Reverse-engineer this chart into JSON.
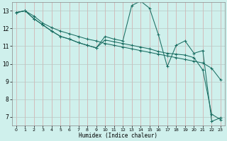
{
  "xlabel": "Humidex (Indice chaleur)",
  "bg_color": "#cff0ec",
  "grid_color_v": "#d4a8a8",
  "grid_color_h": "#b8c8c4",
  "line_color": "#1a6e62",
  "xlim": [
    -0.5,
    23.5
  ],
  "ylim": [
    6.5,
    13.5
  ],
  "yticks": [
    7,
    8,
    9,
    10,
    11,
    12,
    13
  ],
  "xticks": [
    0,
    1,
    2,
    3,
    4,
    5,
    6,
    7,
    8,
    9,
    10,
    11,
    12,
    13,
    14,
    15,
    16,
    17,
    18,
    19,
    20,
    21,
    22,
    23
  ],
  "series": [
    {
      "x": [
        0,
        1,
        2,
        3,
        4,
        5,
        6,
        7,
        8,
        9,
        10,
        11,
        12,
        13,
        14,
        15,
        16,
        17,
        18,
        19,
        20,
        21,
        22,
        23
      ],
      "y": [
        12.9,
        13.0,
        12.7,
        12.3,
        12.05,
        11.85,
        11.7,
        11.55,
        11.4,
        11.3,
        11.15,
        11.05,
        10.95,
        10.85,
        10.75,
        10.65,
        10.55,
        10.45,
        10.35,
        10.25,
        10.15,
        10.05,
        9.75,
        9.1
      ]
    },
    {
      "x": [
        0,
        1,
        2,
        3,
        4,
        5,
        6,
        7,
        8,
        9,
        10,
        11,
        12,
        13,
        14,
        15,
        16,
        17,
        18,
        19,
        20,
        21,
        22,
        23
      ],
      "y": [
        12.9,
        13.0,
        12.55,
        12.2,
        11.85,
        11.55,
        11.4,
        11.2,
        11.05,
        10.9,
        11.55,
        11.4,
        11.3,
        13.3,
        13.55,
        13.15,
        11.65,
        9.85,
        11.05,
        11.3,
        10.6,
        10.75,
        6.75,
        6.95
      ]
    },
    {
      "x": [
        0,
        1,
        2,
        3,
        4,
        5,
        6,
        7,
        8,
        9,
        10,
        11,
        12,
        13,
        14,
        15,
        16,
        17,
        18,
        19,
        20,
        21,
        22,
        23
      ],
      "y": [
        12.9,
        13.0,
        12.55,
        12.2,
        11.85,
        11.55,
        11.4,
        11.2,
        11.05,
        10.9,
        11.35,
        11.25,
        11.15,
        11.05,
        10.95,
        10.85,
        10.7,
        10.6,
        10.55,
        10.5,
        10.35,
        9.65,
        7.15,
        6.85
      ]
    }
  ]
}
